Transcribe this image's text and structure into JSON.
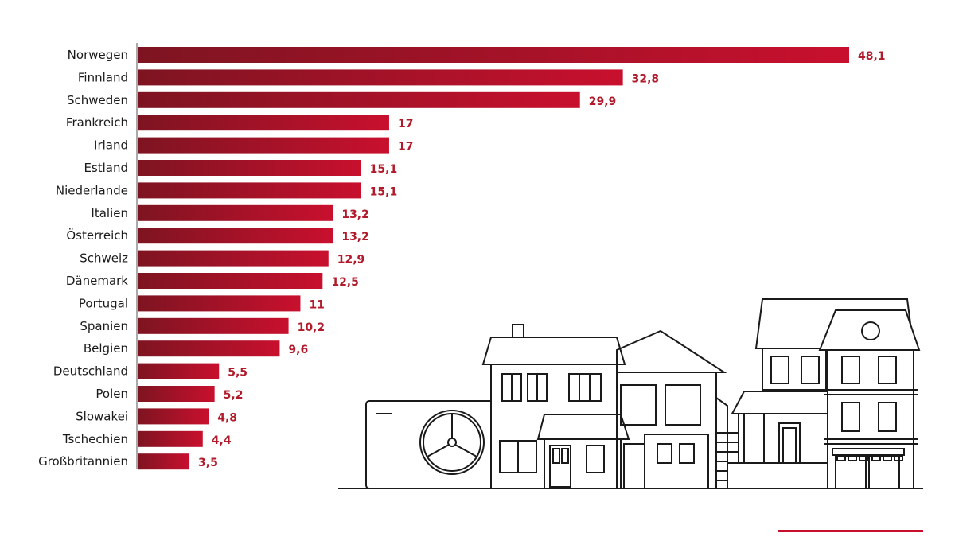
{
  "chart_data": {
    "type": "bar",
    "orientation": "horizontal",
    "categories": [
      "Norwegen",
      "Finnland",
      "Schweden",
      "Frankreich",
      "Irland",
      "Estland",
      "Niederlande",
      "Italien",
      "Österreich",
      "Schweiz",
      "Dänemark",
      "Portugal",
      "Spanien",
      "Belgien",
      "Deutschland",
      "Polen",
      "Slowakei",
      "Tschechien",
      "Großbritannien"
    ],
    "values": [
      48.1,
      32.8,
      29.9,
      17,
      17,
      15.1,
      15.1,
      13.2,
      13.2,
      12.9,
      12.5,
      11,
      10.2,
      9.6,
      5.5,
      5.2,
      4.8,
      4.4,
      3.5
    ],
    "value_labels": [
      "48,1",
      "32,8",
      "29,9",
      "17",
      "17",
      "15,1",
      "15,1",
      "13,2",
      "13,2",
      "12,9",
      "12,5",
      "11",
      "10,2",
      "9,6",
      "5,5",
      "5,2",
      "4,8",
      "4,4",
      "3,5"
    ],
    "title": "",
    "xlabel": "",
    "ylabel": "",
    "xlim": [
      0,
      48.1
    ],
    "grid": false,
    "legend": "none"
  },
  "colors": {
    "bar_dark": "#7e1421",
    "bar_light": "#c8102e",
    "value_text": "#b01a2a",
    "axis": "#555555",
    "illustration": "#1a1a1a",
    "brand": "#c8102e"
  },
  "illustration": "houses-with-heat-pump-icon"
}
